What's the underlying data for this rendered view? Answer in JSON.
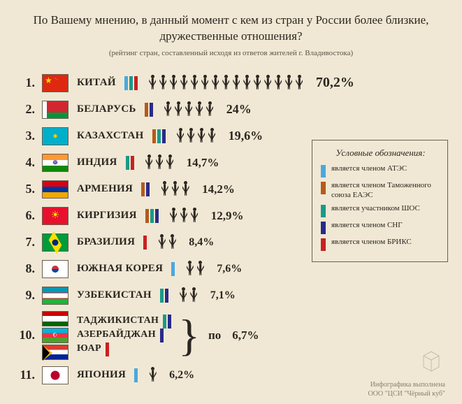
{
  "title": "По Вашему мнению, в данный момент с кем из стран у России более близкие, дружественные отношения?",
  "subtitle": "(рейтинг стран, составленный исходя из ответов жителей г. Владивостока)",
  "orgs": {
    "atec": {
      "color": "#4aa8e0",
      "label": "является членом АТЭС"
    },
    "eaes": {
      "color": "#b55a1e",
      "label": "является членом Таможенного союза ЕАЭС"
    },
    "shos": {
      "color": "#1a9a88",
      "label": "является участником ШОС"
    },
    "sng": {
      "color": "#2a2a8a",
      "label": "является членом СНГ"
    },
    "briks": {
      "color": "#c62222",
      "label": "является членом БРИКС"
    }
  },
  "legend_title": "Условные обозначения:",
  "po_label": "по",
  "rows": [
    {
      "rank": "1.",
      "flags": [
        "china"
      ],
      "names": [
        "КИТАЙ"
      ],
      "orgs": [
        "atec",
        "shos",
        "briks"
      ],
      "people": 15,
      "pct": "70,2%",
      "pct_size": 20
    },
    {
      "rank": "2.",
      "flags": [
        "belarus"
      ],
      "names": [
        "БЕЛАРУСЬ"
      ],
      "orgs": [
        "eaes",
        "sng"
      ],
      "people": 5,
      "pct": "24%",
      "pct_size": 18
    },
    {
      "rank": "3.",
      "flags": [
        "kazakhstan"
      ],
      "names": [
        "КАЗАХСТАН"
      ],
      "orgs": [
        "eaes",
        "shos",
        "sng"
      ],
      "people": 4,
      "pct": "19,6%",
      "pct_size": 18
    },
    {
      "rank": "4.",
      "flags": [
        "india"
      ],
      "names": [
        "ИНДИЯ"
      ],
      "orgs": [
        "shos",
        "briks"
      ],
      "people": 3,
      "pct": "14,7%",
      "pct_size": 17
    },
    {
      "rank": "5.",
      "flags": [
        "armenia"
      ],
      "names": [
        "АРМЕНИЯ"
      ],
      "orgs": [
        "eaes",
        "sng"
      ],
      "people": 3,
      "pct": "14,2%",
      "pct_size": 17
    },
    {
      "rank": "6.",
      "flags": [
        "kyrgyz"
      ],
      "names": [
        "КИРГИЗИЯ"
      ],
      "orgs": [
        "eaes",
        "shos",
        "sng"
      ],
      "people": 3,
      "pct": "12,9%",
      "pct_size": 17
    },
    {
      "rank": "7.",
      "flags": [
        "brazil"
      ],
      "names": [
        "БРАЗИЛИЯ"
      ],
      "orgs": [
        "briks"
      ],
      "people": 2,
      "pct": "8,4%",
      "pct_size": 16
    },
    {
      "rank": "8.",
      "flags": [
        "korea"
      ],
      "names": [
        "ЮЖНАЯ КОРЕЯ"
      ],
      "orgs": [
        "atec"
      ],
      "people": 2,
      "pct": "7,6%",
      "pct_size": 16
    },
    {
      "rank": "9.",
      "flags": [
        "uzbek"
      ],
      "names": [
        "УЗБЕКИСТАН"
      ],
      "orgs": [
        "shos",
        "sng"
      ],
      "people": 2,
      "pct": "7,1%",
      "pct_size": 16
    },
    {
      "rank": "10.",
      "flags": [
        "tajik",
        "azer",
        "sa"
      ],
      "names": [
        "ТАДЖИКИСТАН",
        "АЗЕРБАЙДЖАН",
        "ЮАР"
      ],
      "orgs_per": [
        [
          "shos",
          "sng"
        ],
        [
          "sng"
        ],
        [
          "briks"
        ]
      ],
      "people": 0,
      "pct": "6,7%",
      "pct_size": 17,
      "grouped": true
    },
    {
      "rank": "11.",
      "flags": [
        "japan"
      ],
      "names": [
        "ЯПОНИЯ"
      ],
      "orgs": [
        "atec"
      ],
      "people": 1,
      "pct": "6,2%",
      "pct_size": 16
    }
  ],
  "credit_line1": "Инфографика выполнена",
  "credit_line2": "ООО \"ЦСИ \"Чёрный куб\""
}
